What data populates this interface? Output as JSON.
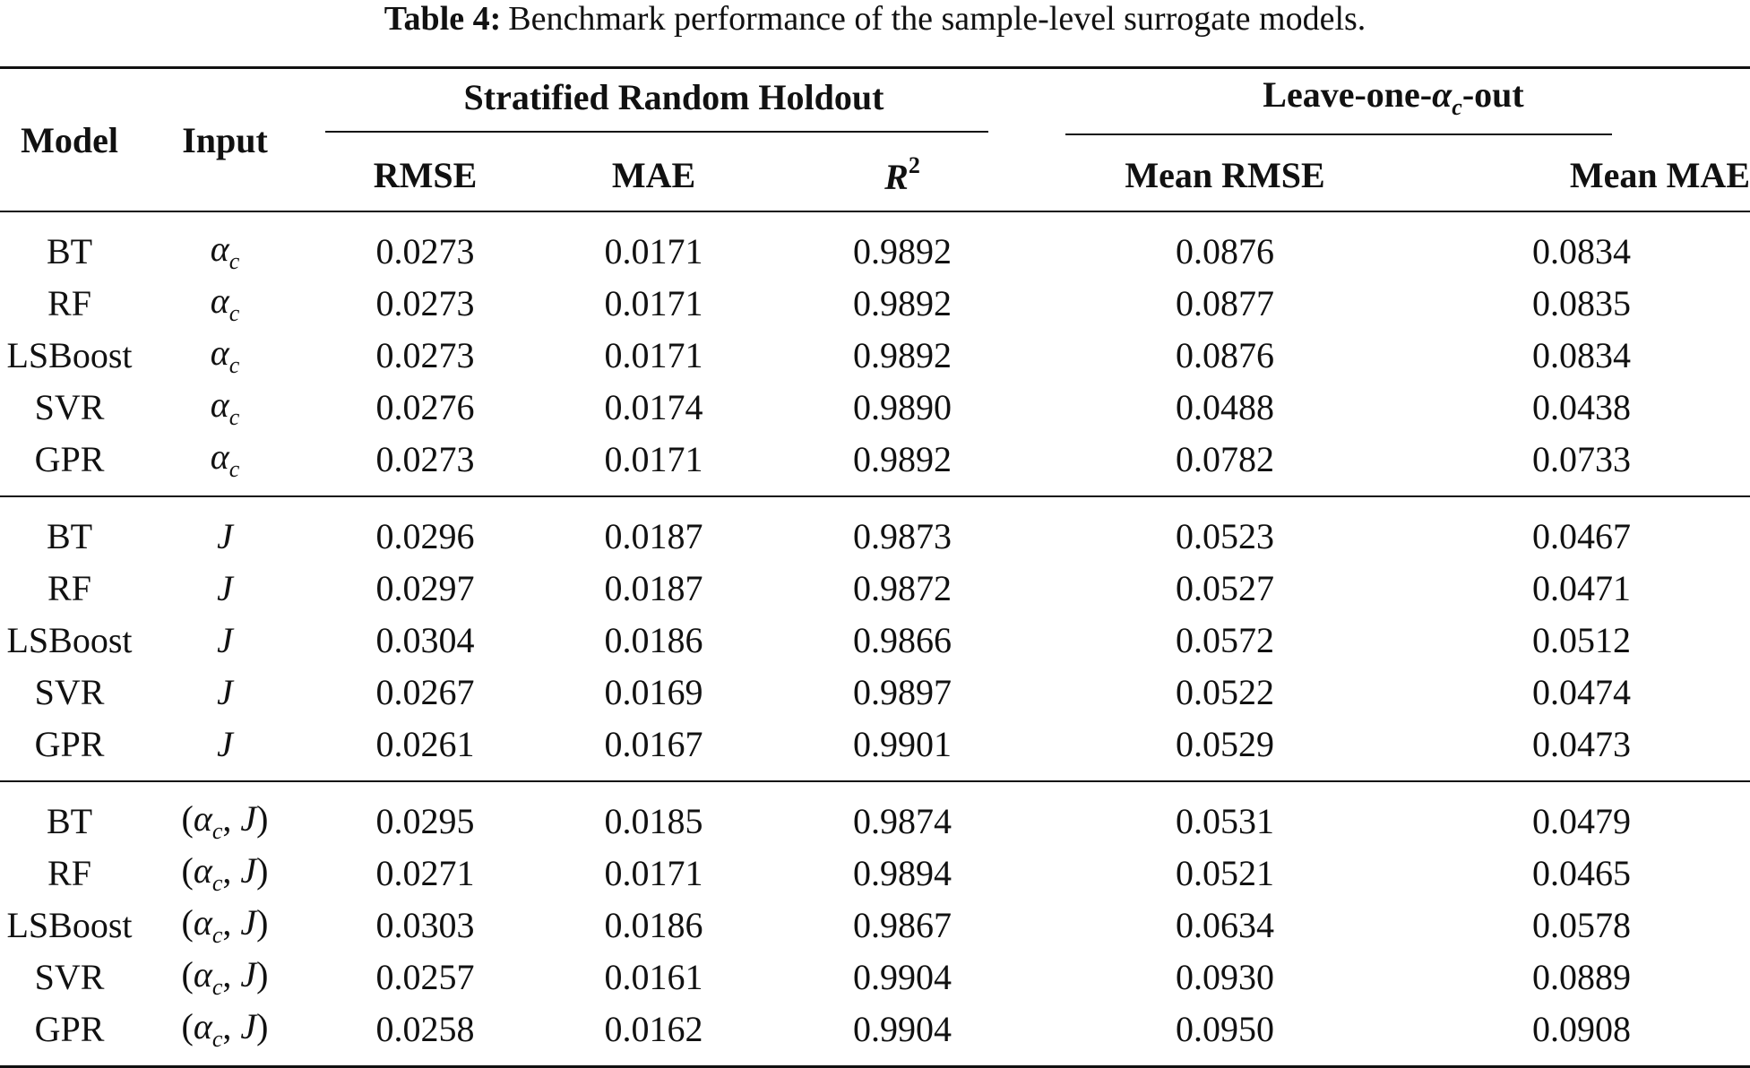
{
  "caption": {
    "label": "Table 4:",
    "text": "Benchmark performance of the sample-level surrogate models."
  },
  "header": {
    "model": "Model",
    "input": "Input",
    "group1": "Stratified Random Holdout",
    "group2_prefix": "Leave-one-",
    "group2_sym": "α",
    "group2_sub": "c",
    "group2_suffix": "-out",
    "rmse": "RMSE",
    "mae": "MAE",
    "r2_base": "R",
    "r2_exp": "2",
    "mean_rmse": "Mean RMSE",
    "mean_mae": "Mean MAE"
  },
  "groups": [
    {
      "input_sym": "α",
      "input_sub": "c",
      "rows": [
        {
          "model": "BT",
          "rmse": "0.0273",
          "mae": "0.0171",
          "r2": "0.9892",
          "mean_rmse": "0.0876",
          "mean_mae": "0.0834"
        },
        {
          "model": "RF",
          "rmse": "0.0273",
          "mae": "0.0171",
          "r2": "0.9892",
          "mean_rmse": "0.0877",
          "mean_mae": "0.0835"
        },
        {
          "model": "LSBoost",
          "rmse": "0.0273",
          "mae": "0.0171",
          "r2": "0.9892",
          "mean_rmse": "0.0876",
          "mean_mae": "0.0834"
        },
        {
          "model": "SVR",
          "rmse": "0.0276",
          "mae": "0.0174",
          "r2": "0.9890",
          "mean_rmse": "0.0488",
          "mean_mae": "0.0438"
        },
        {
          "model": "GPR",
          "rmse": "0.0273",
          "mae": "0.0171",
          "r2": "0.9892",
          "mean_rmse": "0.0782",
          "mean_mae": "0.0733"
        }
      ]
    },
    {
      "input_sym": "J",
      "rows": [
        {
          "model": "BT",
          "rmse": "0.0296",
          "mae": "0.0187",
          "r2": "0.9873",
          "mean_rmse": "0.0523",
          "mean_mae": "0.0467"
        },
        {
          "model": "RF",
          "rmse": "0.0297",
          "mae": "0.0187",
          "r2": "0.9872",
          "mean_rmse": "0.0527",
          "mean_mae": "0.0471"
        },
        {
          "model": "LSBoost",
          "rmse": "0.0304",
          "mae": "0.0186",
          "r2": "0.9866",
          "mean_rmse": "0.0572",
          "mean_mae": "0.0512"
        },
        {
          "model": "SVR",
          "rmse": "0.0267",
          "mae": "0.0169",
          "r2": "0.9897",
          "mean_rmse": "0.0522",
          "mean_mae": "0.0474"
        },
        {
          "model": "GPR",
          "rmse": "0.0261",
          "mae": "0.0167",
          "r2": "0.9901",
          "mean_rmse": "0.0529",
          "mean_mae": "0.0473"
        }
      ]
    },
    {
      "input_open": "(",
      "input_sym": "α",
      "input_sub": "c",
      "input_sep": ", ",
      "input_sym2": "J",
      "input_close": ")",
      "rows": [
        {
          "model": "BT",
          "rmse": "0.0295",
          "mae": "0.0185",
          "r2": "0.9874",
          "mean_rmse": "0.0531",
          "mean_mae": "0.0479"
        },
        {
          "model": "RF",
          "rmse": "0.0271",
          "mae": "0.0171",
          "r2": "0.9894",
          "mean_rmse": "0.0521",
          "mean_mae": "0.0465"
        },
        {
          "model": "LSBoost",
          "rmse": "0.0303",
          "mae": "0.0186",
          "r2": "0.9867",
          "mean_rmse": "0.0634",
          "mean_mae": "0.0578"
        },
        {
          "model": "SVR",
          "rmse": "0.0257",
          "mae": "0.0161",
          "r2": "0.9904",
          "mean_rmse": "0.0930",
          "mean_mae": "0.0889"
        },
        {
          "model": "GPR",
          "rmse": "0.0258",
          "mae": "0.0162",
          "r2": "0.9904",
          "mean_rmse": "0.0950",
          "mean_mae": "0.0908"
        }
      ]
    }
  ]
}
